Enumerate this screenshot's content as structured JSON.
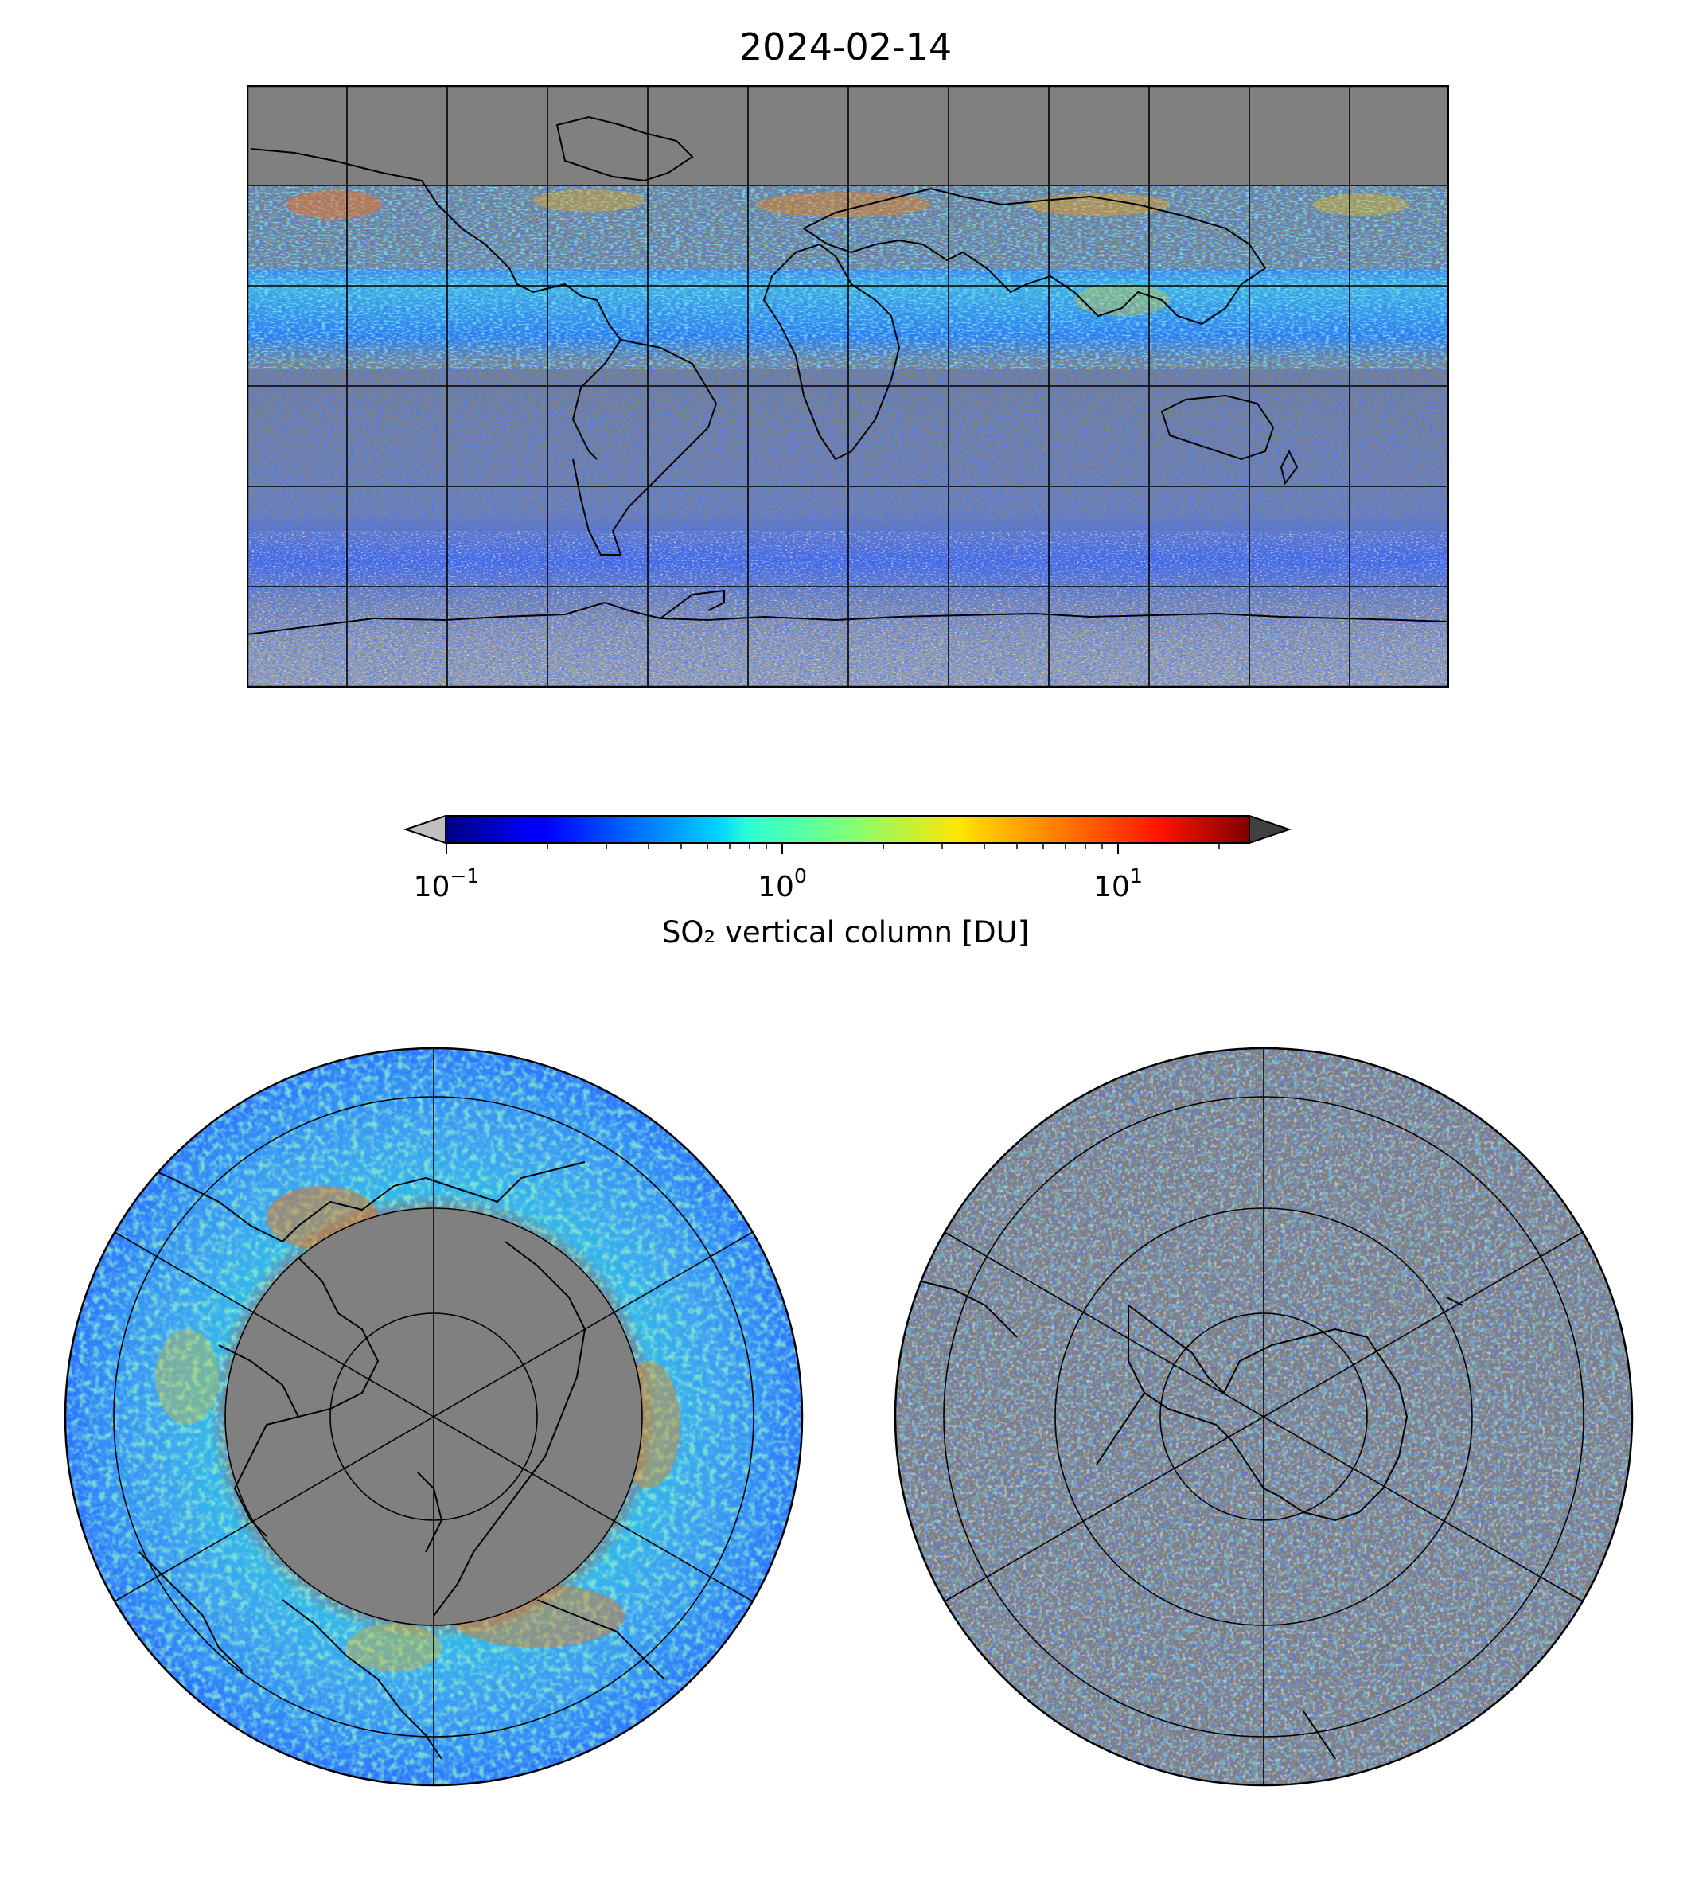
{
  "title": "2024-02-14",
  "colorbar": {
    "label": "SO₂ vertical column [DU]",
    "scale": "log",
    "range": [
      0.1,
      25
    ],
    "colormap": "jet",
    "ticks": [
      {
        "value": 0.1,
        "base": "10",
        "exp": "−1"
      },
      {
        "value": 1,
        "base": "10",
        "exp": "0"
      },
      {
        "value": 10,
        "base": "10",
        "exp": "1"
      }
    ],
    "under_color": "#c0c0c0",
    "over_color": "#404040"
  },
  "colors": {
    "no_data": "#808080",
    "below_range": "#c0c0c0",
    "coastline": "#000000",
    "gridline": "#000000"
  },
  "maps": {
    "global": {
      "projection": "equirectangular",
      "lon_grid_step": 30,
      "lat_grid_step": 30
    },
    "north_pole": {
      "projection": "polar-stereographic-north",
      "lat_circles": [
        0,
        30,
        60,
        75
      ]
    },
    "south_pole": {
      "projection": "polar-stereographic-south",
      "lat_circles": [
        0,
        -30,
        -60,
        -75
      ]
    }
  }
}
